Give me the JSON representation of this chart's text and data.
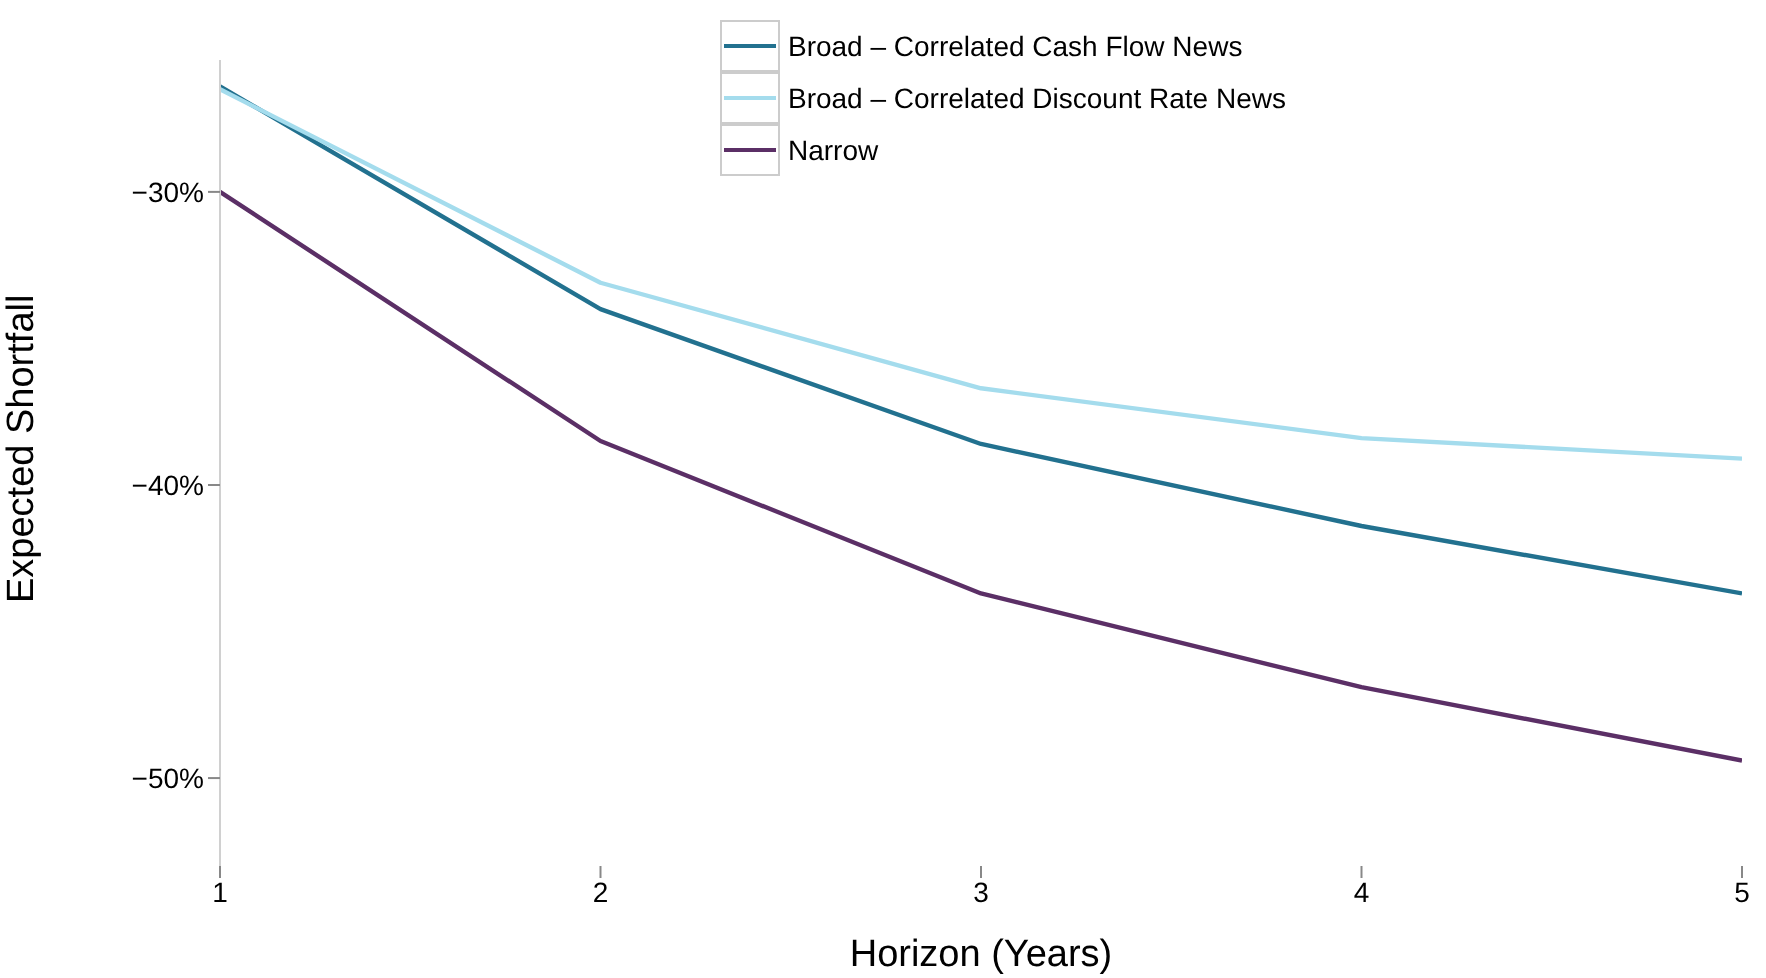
{
  "chart_data": {
    "type": "line",
    "xlabel": "Horizon (Years)",
    "ylabel": "Expected Shortfall",
    "x": [
      1,
      2,
      3,
      4,
      5
    ],
    "series": [
      {
        "name": "Broad – Correlated Cash Flow News",
        "color": "#22718f",
        "values": [
          -26.4,
          -34.0,
          -38.6,
          -41.4,
          -43.7
        ]
      },
      {
        "name": "Broad – Correlated Discount Rate News",
        "color": "#a4dced",
        "values": [
          -26.5,
          -33.1,
          -36.7,
          -38.4,
          -39.1
        ]
      },
      {
        "name": "Narrow",
        "color": "#5b2f66",
        "values": [
          -30.0,
          -38.5,
          -43.7,
          -46.9,
          -49.4
        ]
      }
    ],
    "xlim": [
      1,
      5
    ],
    "xticks": [
      1,
      2,
      3,
      4,
      5
    ],
    "ylim": [
      -53,
      -25.5
    ],
    "yticks": [
      {
        "value": -30,
        "label": "−30%"
      },
      {
        "value": -40,
        "label": "−40%"
      },
      {
        "value": -50,
        "label": "−50%"
      }
    ],
    "grid": false,
    "legend": "top",
    "marker": "none",
    "line_style": "solid"
  }
}
